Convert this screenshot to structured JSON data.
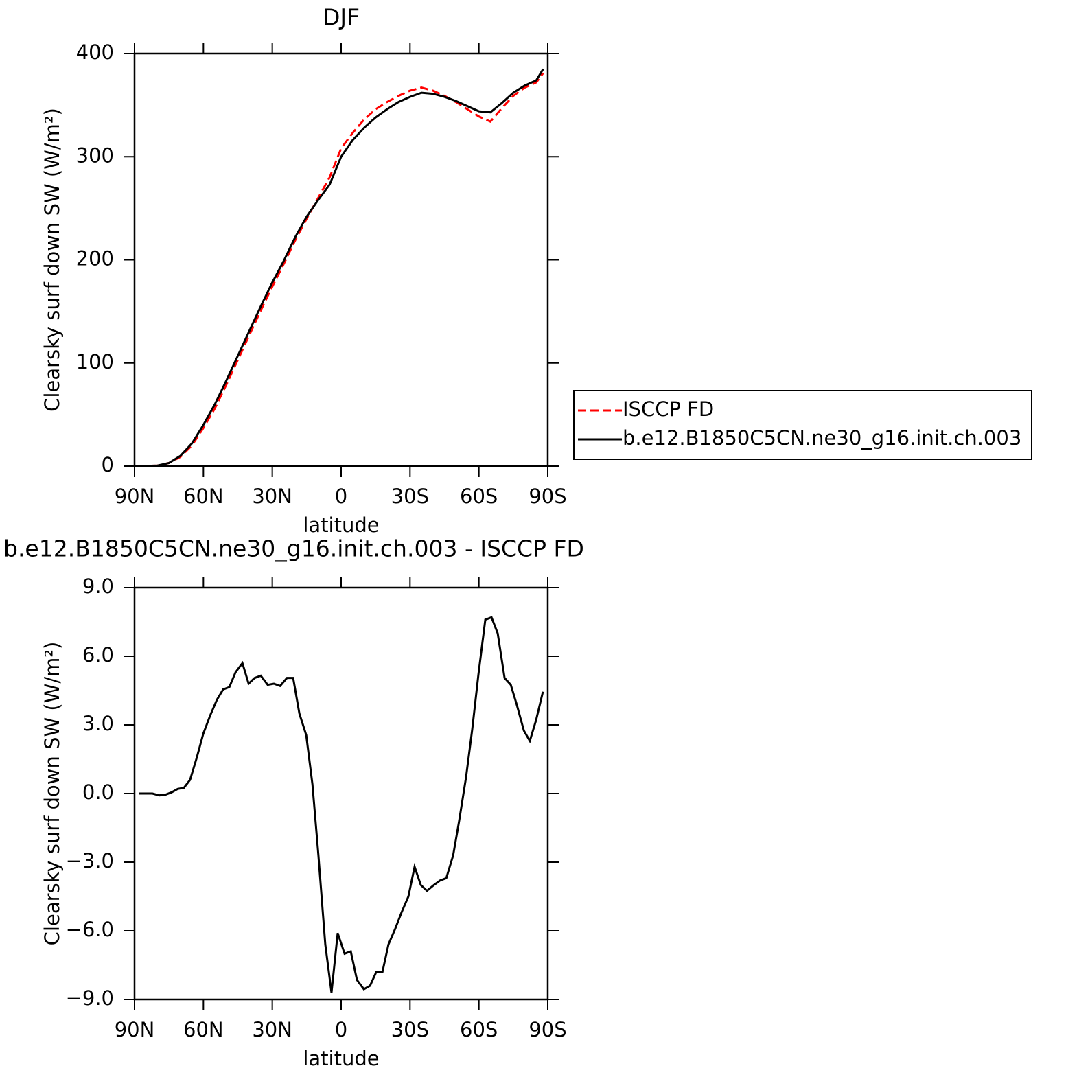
{
  "chart_data": [
    {
      "type": "line",
      "title": "DJF",
      "xlabel": "latitude",
      "ylabel": "Clearsky surf down SW (W/m²)",
      "x": [
        88,
        80,
        75,
        70,
        65,
        60,
        55,
        50,
        45,
        40,
        35,
        30,
        25,
        20,
        15,
        10,
        5,
        0,
        -5,
        -10,
        -15,
        -20,
        -25,
        -30,
        -35,
        -40,
        -45,
        -50,
        -55,
        -60,
        -65,
        -70,
        -75,
        -80,
        -85,
        -88
      ],
      "series": [
        {
          "name": "ISCCP FD",
          "color": "#ff0000",
          "linestyle": "dashed",
          "values": [
            0,
            0.5,
            3,
            9,
            20,
            37,
            56,
            79,
            103,
            127,
            151,
            174,
            196,
            219,
            240,
            260,
            280,
            308,
            323,
            336,
            346,
            353,
            359,
            364,
            367,
            364,
            359,
            353,
            346,
            339,
            334,
            347,
            359,
            367,
            372,
            381
          ]
        },
        {
          "name": "b.e12.B1850C5CN.ne30_g16.init.ch.003",
          "color": "#000000",
          "linestyle": "solid",
          "values": [
            0,
            0.5,
            3,
            10,
            22,
            40,
            60,
            83,
            107,
            131,
            155,
            178,
            199,
            222,
            242,
            258,
            273,
            300,
            316,
            328,
            338,
            346,
            353,
            358,
            362,
            361,
            358,
            354,
            349,
            344,
            343,
            352,
            362,
            369,
            374,
            385
          ]
        }
      ],
      "xlim": [
        90,
        -90
      ],
      "xticks": [
        {
          "value": 90,
          "label": "90N"
        },
        {
          "value": 60,
          "label": "60N"
        },
        {
          "value": 30,
          "label": "30N"
        },
        0,
        {
          "value": -30,
          "label": "30S"
        },
        {
          "value": -60,
          "label": "60S"
        },
        {
          "value": -90,
          "label": "90S"
        }
      ],
      "ylim": [
        0,
        400
      ],
      "yticks": [
        0,
        100,
        200,
        300,
        400
      ],
      "legend": "right"
    },
    {
      "type": "line",
      "title": "b.e12.B1850C5CN.ne30_g16.init.ch.003 - ISCCP FD",
      "xlabel": "latitude",
      "ylabel": "Clearsky surf down SW (W/m²)",
      "x": [
        87.9,
        82.2,
        79.2,
        76.5,
        73.9,
        71.2,
        68.5,
        65.8,
        62.8,
        60.1,
        57.1,
        54.1,
        51.4,
        48.7,
        46.0,
        43.0,
        40.3,
        37.7,
        35.0,
        32.0,
        29.3,
        26.6,
        23.6,
        20.9,
        18.2,
        15.2,
        12.5,
        9.9,
        6.9,
        4.2,
        1.5,
        -1.5,
        -4.2,
        -6.9,
        -9.9,
        -12.6,
        -15.3,
        -18.0,
        -20.6,
        -23.6,
        -26.3,
        -29.3,
        -32.0,
        -34.7,
        -37.4,
        -40.4,
        -43.1,
        -45.8,
        -48.8,
        -51.4,
        -54.4,
        -57.1,
        -59.8,
        -62.8,
        -65.5,
        -68.2,
        -71.2,
        -73.9,
        -76.6,
        -79.6,
        -82.2,
        -84.9,
        -87.9
      ],
      "series": [
        {
          "color": "#000000",
          "linestyle": "solid",
          "values": [
            0,
            0,
            -0.08,
            -0.05,
            0.05,
            0.2,
            0.25,
            0.6,
            1.6,
            2.6,
            3.4,
            4.1,
            4.55,
            4.65,
            5.3,
            5.7,
            4.8,
            5.05,
            5.15,
            4.75,
            4.8,
            4.7,
            5.05,
            5.05,
            3.5,
            2.55,
            0.4,
            -2.7,
            -6.6,
            -8.7,
            -6.1,
            -7.0,
            -6.9,
            -8.15,
            -8.55,
            -8.4,
            -7.8,
            -7.8,
            -6.6,
            -5.9,
            -5.2,
            -4.5,
            -3.2,
            -4.0,
            -4.25,
            -4.0,
            -3.8,
            -3.7,
            -2.7,
            -1.2,
            0.7,
            2.8,
            5.2,
            7.6,
            7.7,
            7.0,
            5.05,
            4.75,
            3.85,
            2.75,
            2.3,
            3.2,
            4.45
          ]
        }
      ],
      "xlim": [
        90,
        -90
      ],
      "xticks": [
        {
          "value": 90,
          "label": "90N"
        },
        {
          "value": 60,
          "label": "60N"
        },
        {
          "value": 30,
          "label": "30N"
        },
        0,
        {
          "value": -30,
          "label": "30S"
        },
        {
          "value": -60,
          "label": "60S"
        },
        {
          "value": -90,
          "label": "90S"
        }
      ],
      "ylim": [
        -9,
        9
      ],
      "yticks": [
        {
          "value": -9,
          "label": "−9.0"
        },
        {
          "value": -6,
          "label": "−6.0"
        },
        {
          "value": -3,
          "label": "−3.0"
        },
        {
          "value": 0,
          "label": "0.0"
        },
        {
          "value": 3,
          "label": "3.0"
        },
        {
          "value": 6,
          "label": "6.0"
        },
        {
          "value": 9,
          "label": "9.0"
        }
      ]
    }
  ]
}
